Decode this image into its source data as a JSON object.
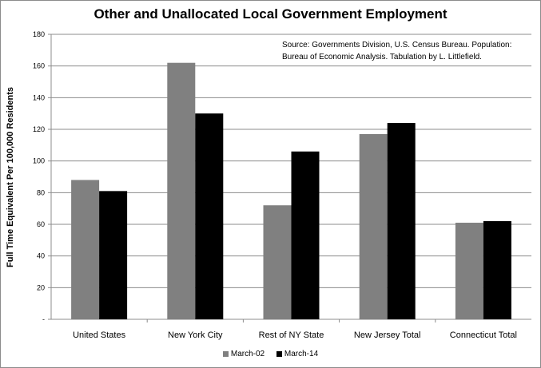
{
  "colors": {
    "march02": "#808080",
    "march14": "#000000",
    "grid": "#8c8c8c"
  },
  "note": {
    "line1": "Source:  Governments Division, U.S. Census Bureau.  Population:",
    "line2": "Bureau of Economic Analysis.  Tabulation by L. Littlefield."
  },
  "chart_data": {
    "type": "bar",
    "title": "Other and Unallocated Local Government Employment",
    "xlabel": "",
    "ylabel": "Full Time Equivalent Per 100,000 Residents",
    "ylim": [
      0,
      180
    ],
    "yticks": [
      {
        "value": 0,
        "label": "-"
      },
      {
        "value": 20,
        "label": "20"
      },
      {
        "value": 40,
        "label": "40"
      },
      {
        "value": 60,
        "label": "60"
      },
      {
        "value": 80,
        "label": "80"
      },
      {
        "value": 100,
        "label": "100"
      },
      {
        "value": 120,
        "label": "120"
      },
      {
        "value": 140,
        "label": "140"
      },
      {
        "value": 160,
        "label": "160"
      },
      {
        "value": 180,
        "label": "180"
      }
    ],
    "grid": true,
    "legend": "bottom",
    "categories": [
      "United States",
      "New York City",
      "Rest of NY State",
      "New Jersey Total",
      "Connecticut Total"
    ],
    "series": [
      {
        "name": "March-02",
        "color": "#808080",
        "values": [
          88,
          162,
          72,
          117,
          61
        ]
      },
      {
        "name": "March-14",
        "color": "#000000",
        "values": [
          81,
          130,
          106,
          124,
          62
        ]
      }
    ]
  }
}
